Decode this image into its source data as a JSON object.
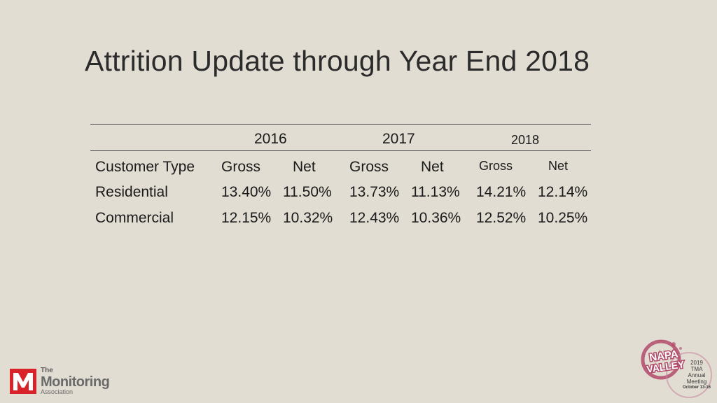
{
  "slide": {
    "title": "Attrition Update through Year End 2018"
  },
  "table": {
    "years": [
      "2016",
      "2017",
      "2018"
    ],
    "headers": {
      "customer_type": "Customer Type",
      "gross": "Gross",
      "net": "Net"
    },
    "rows": [
      {
        "type": "Residential",
        "values": [
          "13.40%",
          "11.50%",
          "13.73%",
          "11.13%",
          "14.21%",
          "12.14%"
        ]
      },
      {
        "type": "Commercial",
        "values": [
          "12.15%",
          "10.32%",
          "12.43%",
          "10.36%",
          "12.52%",
          "10.25%"
        ]
      }
    ]
  },
  "footer": {
    "tma_logo": {
      "the": "The",
      "name": "Monitoring",
      "assoc": "Association"
    },
    "napa_badge": {
      "title_line1": "NAPA",
      "title_line2": "VALLEY",
      "year": "2019",
      "org": "TMA",
      "event_line1": "Annual",
      "event_line2": "Meeting",
      "dates": "October 13-16"
    }
  },
  "colors": {
    "background": "#e2ddd3",
    "brand_red": "#d8232a",
    "badge_pink": "#b24a6a"
  }
}
